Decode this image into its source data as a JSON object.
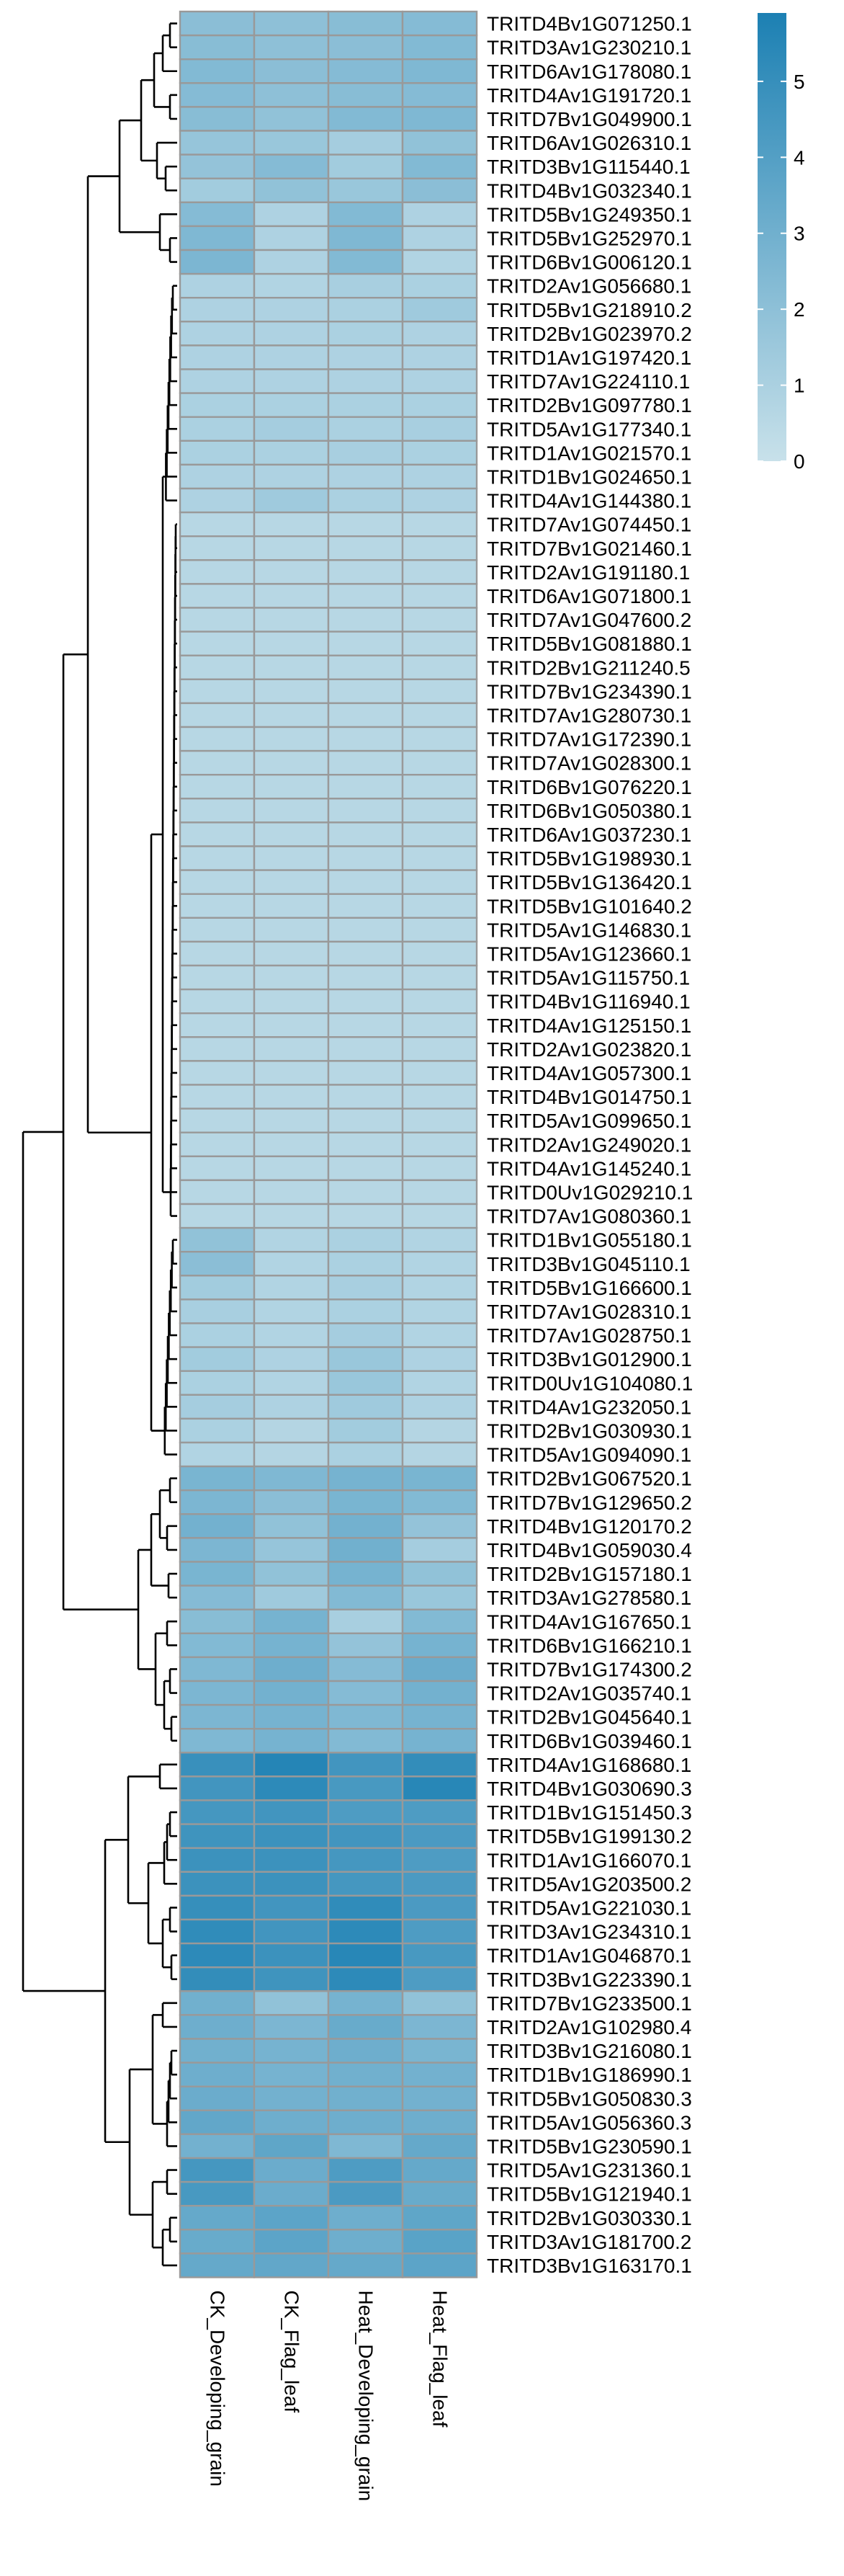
{
  "chart_data": {
    "type": "heatmap",
    "columns": [
      "CK_Developing_grain",
      "CK_Flag_leaf",
      "Heat_Developing_grain",
      "Heat_Flag_leaf"
    ],
    "rows": [
      "TRITD4Bv1G071250.1",
      "TRITD3Av1G230210.1",
      "TRITD6Av1G178080.1",
      "TRITD4Av1G191720.1",
      "TRITD7Bv1G049900.1",
      "TRITD6Av1G026310.1",
      "TRITD3Bv1G115440.1",
      "TRITD4Bv1G032340.1",
      "TRITD5Bv1G249350.1",
      "TRITD5Bv1G252970.1",
      "TRITD6Bv1G006120.1",
      "TRITD2Av1G056680.1",
      "TRITD5Bv1G218910.2",
      "TRITD2Bv1G023970.2",
      "TRITD1Av1G197420.1",
      "TRITD7Av1G224110.1",
      "TRITD2Bv1G097780.1",
      "TRITD5Av1G177340.1",
      "TRITD1Av1G021570.1",
      "TRITD1Bv1G024650.1",
      "TRITD4Av1G144380.1",
      "TRITD7Av1G074450.1",
      "TRITD7Bv1G021460.1",
      "TRITD2Av1G191180.1",
      "TRITD6Av1G071800.1",
      "TRITD7Av1G047600.2",
      "TRITD5Bv1G081880.1",
      "TRITD2Bv1G211240.5",
      "TRITD7Bv1G234390.1",
      "TRITD7Av1G280730.1",
      "TRITD7Av1G172390.1",
      "TRITD7Av1G028300.1",
      "TRITD6Bv1G076220.1",
      "TRITD6Bv1G050380.1",
      "TRITD6Av1G037230.1",
      "TRITD5Bv1G198930.1",
      "TRITD5Bv1G136420.1",
      "TRITD5Bv1G101640.2",
      "TRITD5Av1G146830.1",
      "TRITD5Av1G123660.1",
      "TRITD5Av1G115750.1",
      "TRITD4Bv1G116940.1",
      "TRITD4Av1G125150.1",
      "TRITD2Av1G023820.1",
      "TRITD4Av1G057300.1",
      "TRITD4Bv1G014750.1",
      "TRITD5Av1G099650.1",
      "TRITD2Av1G249020.1",
      "TRITD4Av1G145240.1",
      "TRITD0Uv1G029210.1",
      "TRITD7Av1G080360.1",
      "TRITD1Bv1G055180.1",
      "TRITD3Bv1G045110.1",
      "TRITD5Bv1G166600.1",
      "TRITD7Av1G028310.1",
      "TRITD7Av1G028750.1",
      "TRITD3Bv1G012900.1",
      "TRITD0Uv1G104080.1",
      "TRITD4Av1G232050.1",
      "TRITD2Bv1G030930.1",
      "TRITD5Av1G094090.1",
      "TRITD2Bv1G067520.1",
      "TRITD7Bv1G129650.2",
      "TRITD4Bv1G120170.2",
      "TRITD4Bv1G059030.4",
      "TRITD2Bv1G157180.1",
      "TRITD3Av1G278580.1",
      "TRITD4Av1G167650.1",
      "TRITD6Bv1G166210.1",
      "TRITD7Bv1G174300.2",
      "TRITD2Av1G035740.1",
      "TRITD2Bv1G045640.1",
      "TRITD6Bv1G039460.1",
      "TRITD4Av1G168680.1",
      "TRITD4Bv1G030690.3",
      "TRITD1Bv1G151450.3",
      "TRITD5Bv1G199130.2",
      "TRITD1Av1G166070.1",
      "TRITD5Av1G203500.2",
      "TRITD5Av1G221030.1",
      "TRITD3Av1G234310.1",
      "TRITD1Av1G046870.1",
      "TRITD3Bv1G223390.1",
      "TRITD7Bv1G233500.1",
      "TRITD2Av1G102980.4",
      "TRITD3Bv1G216080.1",
      "TRITD1Bv1G186990.1",
      "TRITD5Bv1G050830.3",
      "TRITD5Av1G056360.3",
      "TRITD5Bv1G230590.1",
      "TRITD5Av1G231360.1",
      "TRITD5Bv1G121940.1",
      "TRITD2Bv1G030330.1",
      "TRITD3Av1G181700.2",
      "TRITD3Bv1G163170.1"
    ],
    "values": [
      [
        2.1,
        2.0,
        2.2,
        2.3
      ],
      [
        2.2,
        2.0,
        2.1,
        2.4
      ],
      [
        2.4,
        2.1,
        2.3,
        2.5
      ],
      [
        2.3,
        2.0,
        2.2,
        2.3
      ],
      [
        2.2,
        1.9,
        2.4,
        2.5
      ],
      [
        1.7,
        1.6,
        1.2,
        1.9
      ],
      [
        1.8,
        2.3,
        1.3,
        2.4
      ],
      [
        1.3,
        1.9,
        1.6,
        2.1
      ],
      [
        2.3,
        0.9,
        2.4,
        0.9
      ],
      [
        2.5,
        0.9,
        2.5,
        0.9
      ],
      [
        2.6,
        0.9,
        2.4,
        0.8
      ],
      [
        0.9,
        0.8,
        1.1,
        1.0
      ],
      [
        0.9,
        0.9,
        1.0,
        1.4
      ],
      [
        0.9,
        0.9,
        1.0,
        0.9
      ],
      [
        0.9,
        0.9,
        0.9,
        0.9
      ],
      [
        0.9,
        0.9,
        0.9,
        0.9
      ],
      [
        1.0,
        1.0,
        1.0,
        1.0
      ],
      [
        1.0,
        1.2,
        1.0,
        1.1
      ],
      [
        1.0,
        1.0,
        1.1,
        1.0
      ],
      [
        0.9,
        0.9,
        0.9,
        0.9
      ],
      [
        0.9,
        1.4,
        1.0,
        0.9
      ],
      [
        0.6,
        0.6,
        0.6,
        0.6
      ],
      [
        0.6,
        0.6,
        0.6,
        0.6
      ],
      [
        0.6,
        0.6,
        0.6,
        0.6
      ],
      [
        0.6,
        0.6,
        0.6,
        0.6
      ],
      [
        0.6,
        0.6,
        0.6,
        0.6
      ],
      [
        0.6,
        0.6,
        0.6,
        0.6
      ],
      [
        0.6,
        0.6,
        0.6,
        0.6
      ],
      [
        0.6,
        0.6,
        0.6,
        0.6
      ],
      [
        0.6,
        0.6,
        0.6,
        0.6
      ],
      [
        0.6,
        0.6,
        0.6,
        0.6
      ],
      [
        0.6,
        0.6,
        0.6,
        0.6
      ],
      [
        0.6,
        0.6,
        0.6,
        0.6
      ],
      [
        0.6,
        0.6,
        0.6,
        0.6
      ],
      [
        0.6,
        0.6,
        0.6,
        0.6
      ],
      [
        0.6,
        0.6,
        0.6,
        0.6
      ],
      [
        0.6,
        0.6,
        0.6,
        0.6
      ],
      [
        0.6,
        0.6,
        0.6,
        0.6
      ],
      [
        0.6,
        0.6,
        0.6,
        0.6
      ],
      [
        0.6,
        0.6,
        0.6,
        0.6
      ],
      [
        0.6,
        0.6,
        0.6,
        0.6
      ],
      [
        0.6,
        0.6,
        0.6,
        0.6
      ],
      [
        0.6,
        0.6,
        0.6,
        0.6
      ],
      [
        0.6,
        0.6,
        0.6,
        0.6
      ],
      [
        0.6,
        0.6,
        0.6,
        0.6
      ],
      [
        0.6,
        0.6,
        0.6,
        0.6
      ],
      [
        0.6,
        0.6,
        0.6,
        0.6
      ],
      [
        0.6,
        0.6,
        0.6,
        0.6
      ],
      [
        0.6,
        0.6,
        0.6,
        0.6
      ],
      [
        0.6,
        0.6,
        0.6,
        0.6
      ],
      [
        0.6,
        0.6,
        0.6,
        0.6
      ],
      [
        1.9,
        0.8,
        1.0,
        0.8
      ],
      [
        2.1,
        0.8,
        1.0,
        0.8
      ],
      [
        1.3,
        0.8,
        1.1,
        0.8
      ],
      [
        1.1,
        0.8,
        1.0,
        0.8
      ],
      [
        1.0,
        0.8,
        1.2,
        0.8
      ],
      [
        1.3,
        0.9,
        1.6,
        0.9
      ],
      [
        1.0,
        0.8,
        1.6,
        0.8
      ],
      [
        1.2,
        0.9,
        1.4,
        0.9
      ],
      [
        1.0,
        0.7,
        1.3,
        0.7
      ],
      [
        0.8,
        0.7,
        1.0,
        0.7
      ],
      [
        2.7,
        2.5,
        2.8,
        2.7
      ],
      [
        2.6,
        2.1,
        2.7,
        2.4
      ],
      [
        2.9,
        1.9,
        2.9,
        1.8
      ],
      [
        2.6,
        1.7,
        3.0,
        1.2
      ],
      [
        2.7,
        1.9,
        2.8,
        1.9
      ],
      [
        2.3,
        1.4,
        2.4,
        1.6
      ],
      [
        2.2,
        2.8,
        1.1,
        2.4
      ],
      [
        2.4,
        2.8,
        1.8,
        2.8
      ],
      [
        2.5,
        3.1,
        2.3,
        3.2
      ],
      [
        2.6,
        2.9,
        2.3,
        2.9
      ],
      [
        2.6,
        2.8,
        2.5,
        2.8
      ],
      [
        2.5,
        2.8,
        2.4,
        2.8
      ],
      [
        4.9,
        5.6,
        4.6,
        5.1
      ],
      [
        4.6,
        5.3,
        4.4,
        5.5
      ],
      [
        4.5,
        4.6,
        4.2,
        4.2
      ],
      [
        4.7,
        4.8,
        4.6,
        4.3
      ],
      [
        4.8,
        4.8,
        4.5,
        4.2
      ],
      [
        4.8,
        4.8,
        4.5,
        4.3
      ],
      [
        5.0,
        4.6,
        5.2,
        4.3
      ],
      [
        5.2,
        4.6,
        5.3,
        4.2
      ],
      [
        5.3,
        4.8,
        5.5,
        4.4
      ],
      [
        5.1,
        4.7,
        5.3,
        4.2
      ],
      [
        3.0,
        1.9,
        2.8,
        1.9
      ],
      [
        3.1,
        2.6,
        3.3,
        2.6
      ],
      [
        3.0,
        2.8,
        3.1,
        2.7
      ],
      [
        3.1,
        2.8,
        3.0,
        2.9
      ],
      [
        3.2,
        2.9,
        3.0,
        2.9
      ],
      [
        3.5,
        3.1,
        3.1,
        3.1
      ],
      [
        2.9,
        3.6,
        2.5,
        3.4
      ],
      [
        4.5,
        3.2,
        4.2,
        3.4
      ],
      [
        4.4,
        3.2,
        4.3,
        3.3
      ],
      [
        3.4,
        3.7,
        3.1,
        3.6
      ],
      [
        3.3,
        3.7,
        3.1,
        3.8
      ],
      [
        3.4,
        3.5,
        3.4,
        3.7
      ]
    ],
    "colorbar": {
      "min": 0,
      "max": 5.9,
      "ticks": [
        0,
        1,
        2,
        3,
        4,
        5
      ],
      "low_color": "#c8e1ea",
      "high_color": "#1c80b3"
    },
    "row_dendrogram": "left",
    "grid_color": "#999999"
  }
}
